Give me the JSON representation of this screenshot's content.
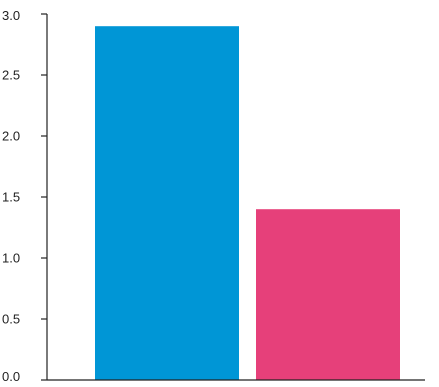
{
  "chart_data": {
    "type": "bar",
    "title": "",
    "xlabel": "",
    "ylabel": "",
    "categories": [
      "",
      ""
    ],
    "values": [
      2.9,
      1.4
    ],
    "colors": [
      "#0096d6",
      "#e6407a"
    ],
    "ylim": [
      0,
      3.0
    ],
    "yticks": [
      "0.0",
      "0.5",
      "1.0",
      "1.5",
      "2.0",
      "2.5",
      "3.0"
    ],
    "grid": false,
    "legend": "none"
  }
}
